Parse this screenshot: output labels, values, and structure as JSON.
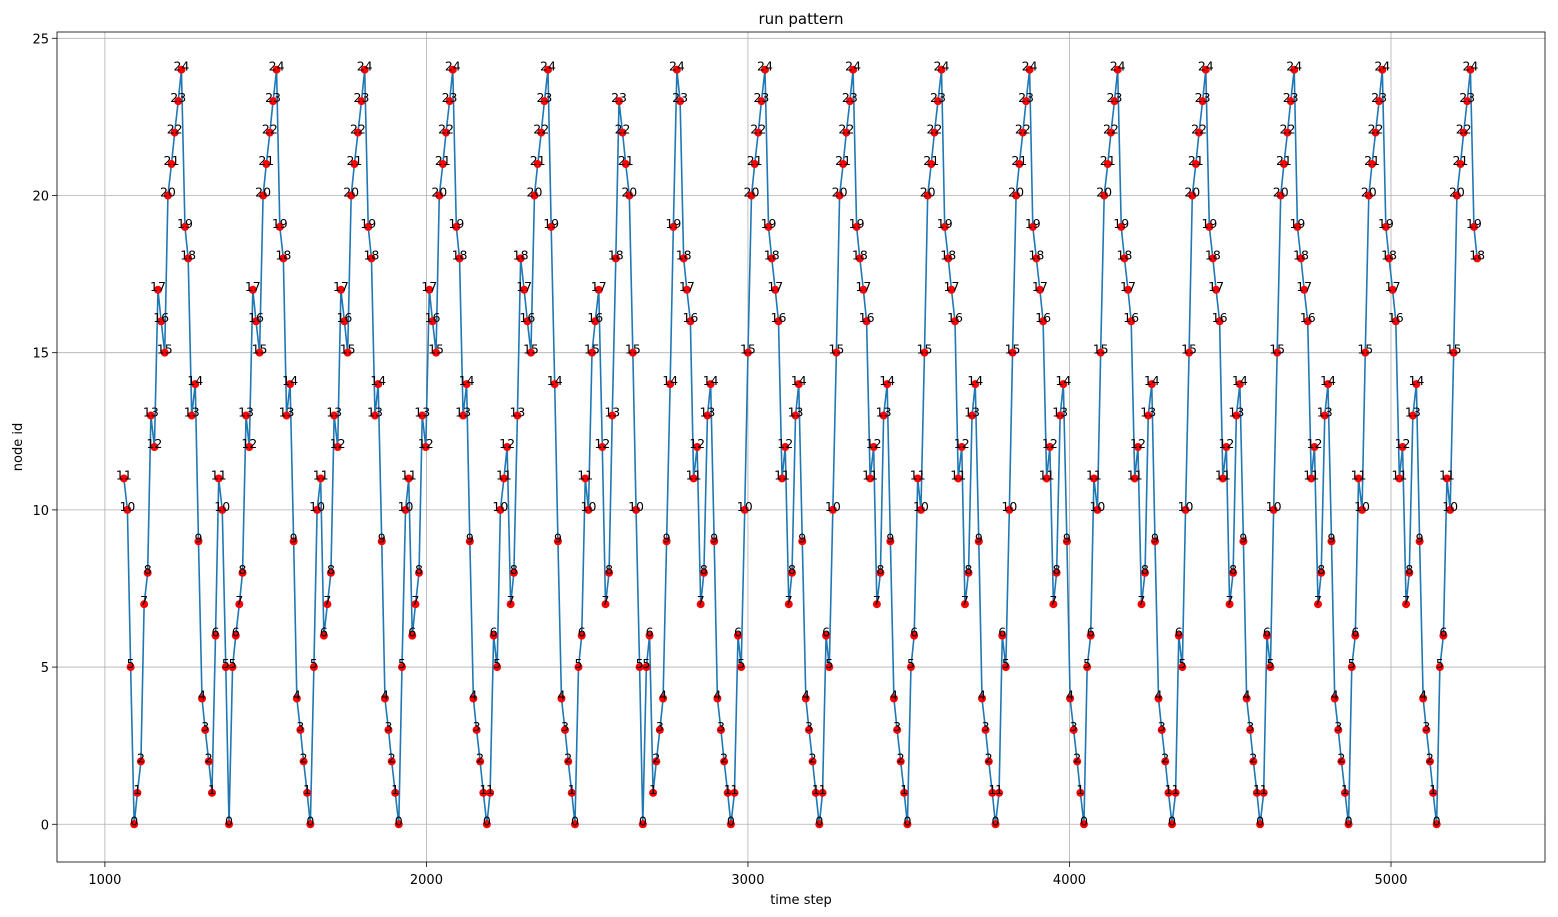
{
  "chart_data": {
    "type": "line",
    "title": "run pattern",
    "x_label": "time step",
    "y_label": "node id",
    "xlim": [
      851,
      5479
    ],
    "ylim": [
      -1.2,
      25.2
    ],
    "xticks": [
      1000,
      2000,
      3000,
      4000,
      5000
    ],
    "yticks": [
      0,
      5,
      10,
      15,
      20,
      25
    ],
    "grid": true,
    "line_color": "#1f77b4",
    "marker_color": "#ff0000",
    "x": [
      1059,
      1070,
      1080,
      1091,
      1101,
      1112,
      1122,
      1133,
      1143,
      1154,
      1165,
      1175,
      1186,
      1196,
      1207,
      1217,
      1228,
      1238,
      1249,
      1259,
      1270,
      1281,
      1291,
      1302,
      1312,
      1323,
      1333,
      1344,
      1354,
      1365,
      1376,
      1386,
      1397,
      1407,
      1418,
      1428,
      1439,
      1449,
      1460,
      1470,
      1481,
      1492,
      1502,
      1513,
      1523,
      1534,
      1544,
      1555,
      1565,
      1576,
      1587,
      1597,
      1608,
      1618,
      1629,
      1639,
      1650,
      1660,
      1671,
      1681,
      1692,
      1703,
      1713,
      1724,
      1734,
      1745,
      1755,
      1766,
      1776,
      1787,
      1798,
      1808,
      1819,
      1829,
      1840,
      1850,
      1861,
      1871,
      1882,
      1892,
      1903,
      1914,
      1924,
      1935,
      1945,
      1956,
      1966,
      1977,
      1987,
      1998,
      2009,
      2019,
      2030,
      2040,
      2051,
      2061,
      2072,
      2082,
      2093,
      2103,
      2114,
      2125,
      2135,
      2146,
      2156,
      2167,
      2177,
      2188,
      2198,
      2209,
      2220,
      2230,
      2241,
      2251,
      2262,
      2272,
      2283,
      2293,
      2304,
      2314,
      2325,
      2336,
      2346,
      2357,
      2367,
      2378,
      2388,
      2399,
      2409,
      2420,
      2431,
      2441,
      2452,
      2462,
      2473,
      2483,
      2494,
      2504,
      2515,
      2525,
      2536,
      2547,
      2557,
      2568,
      2578,
      2589,
      2599,
      2610,
      2620,
      2631,
      2642,
      2652,
      2663,
      2673,
      2684,
      2694,
      2705,
      2715,
      2726,
      2736,
      2747,
      2758,
      2768,
      2779,
      2789,
      2800,
      2810,
      2821,
      2831,
      2842,
      2853,
      2863,
      2874,
      2884,
      2895,
      2905,
      2916,
      2926,
      2937,
      2947,
      2958,
      2969,
      2979,
      2990,
      3000,
      3011,
      3021,
      3032,
      3042,
      3053,
      3064,
      3074,
      3085,
      3095,
      3106,
      3116,
      3127,
      3137,
      3148,
      3158,
      3169,
      3180,
      3190,
      3201,
      3211,
      3222,
      3232,
      3243,
      3253,
      3264,
      3275,
      3285,
      3296,
      3306,
      3317,
      3327,
      3338,
      3348,
      3359,
      3369,
      3380,
      3391,
      3401,
      3412,
      3422,
      3433,
      3443,
      3454,
      3464,
      3475,
      3486,
      3496,
      3507,
      3517,
      3528,
      3538,
      3549,
      3559,
      3570,
      3580,
      3591,
      3602,
      3612,
      3623,
      3633,
      3644,
      3654,
      3665,
      3675,
      3686,
      3697,
      3707,
      3718,
      3728,
      3739,
      3749,
      3760,
      3770,
      3781,
      3791,
      3802,
      3813,
      3823,
      3834,
      3844,
      3855,
      3865,
      3876,
      3886,
      3897,
      3908,
      3918,
      3929,
      3939,
      3950,
      3960,
      3971,
      3981,
      3992,
      4002,
      4013,
      4024,
      4034,
      4045,
      4055,
      4066,
      4076,
      4087,
      4097,
      4108,
      4119,
      4129,
      4140,
      4150,
      4161,
      4171,
      4182,
      4192,
      4203,
      4213,
      4224,
      4235,
      4245,
      4256,
      4266,
      4277,
      4287,
      4298,
      4308,
      4319,
      4330,
      4340,
      4351,
      4361,
      4372,
      4382,
      4393,
      4403,
      4414,
      4424,
      4435,
      4446,
      4456,
      4467,
      4477,
      4488,
      4498,
      4509,
      4519,
      4530,
      4541,
      4551,
      4562,
      4572,
      4583,
      4593,
      4604,
      4614,
      4625,
      4635,
      4646,
      4657,
      4667,
      4678,
      4688,
      4699,
      4709,
      4720,
      4730,
      4741,
      4752,
      4762,
      4773,
      4783,
      4794,
      4804,
      4815,
      4825,
      4836,
      4846,
      4857,
      4868,
      4878,
      4889,
      4899,
      4910,
      4920,
      4931,
      4941,
      4952,
      4963,
      4973,
      4984,
      4994,
      5005,
      5015,
      5026,
      5036,
      5047,
      5057,
      5068,
      5079,
      5089,
      5100,
      5110,
      5121,
      5131,
      5142,
      5152,
      5163,
      5174,
      5184,
      5195,
      5205,
      5216,
      5226,
      5237,
      5247,
      5258,
      5268
    ],
    "values": [
      11,
      10,
      5,
      0,
      1,
      2,
      7,
      8,
      13,
      12,
      17,
      16,
      15,
      20,
      21,
      22,
      23,
      24,
      19,
      18,
      13,
      14,
      9,
      4,
      3,
      2,
      1,
      6,
      11,
      10,
      5,
      0,
      5,
      6,
      7,
      8,
      13,
      12,
      17,
      16,
      15,
      20,
      21,
      22,
      23,
      24,
      19,
      18,
      13,
      14,
      9,
      4,
      3,
      2,
      1,
      0,
      5,
      10,
      11,
      6,
      7,
      8,
      13,
      12,
      17,
      16,
      15,
      20,
      21,
      22,
      23,
      24,
      19,
      18,
      13,
      14,
      9,
      4,
      3,
      2,
      1,
      0,
      5,
      10,
      11,
      6,
      7,
      8,
      13,
      12,
      17,
      16,
      15,
      20,
      21,
      22,
      23,
      24,
      19,
      18,
      13,
      14,
      9,
      4,
      3,
      2,
      1,
      0,
      1,
      6,
      5,
      10,
      11,
      12,
      7,
      8,
      13,
      18,
      17,
      16,
      15,
      20,
      21,
      22,
      23,
      24,
      19,
      14,
      9,
      4,
      3,
      2,
      1,
      0,
      5,
      6,
      11,
      10,
      15,
      16,
      17,
      12,
      7,
      8,
      13,
      18,
      23,
      22,
      21,
      20,
      15,
      10,
      5,
      0,
      5,
      6,
      1,
      2,
      3,
      4,
      9,
      14,
      19,
      24,
      23,
      18,
      17,
      16,
      11,
      12,
      7,
      8,
      13,
      14,
      9,
      4,
      3,
      2,
      1,
      0,
      1,
      6,
      5,
      10,
      15,
      20,
      21,
      22,
      23,
      24,
      19,
      18,
      17,
      16,
      11,
      12,
      7,
      8,
      13,
      14,
      9,
      4,
      3,
      2,
      1,
      0,
      1,
      6,
      5,
      10,
      15,
      20,
      21,
      22,
      23,
      24,
      19,
      18,
      17,
      16,
      11,
      12,
      7,
      8,
      13,
      14,
      9,
      4,
      3,
      2,
      1,
      0,
      5,
      6,
      11,
      10,
      15,
      20,
      21,
      22,
      23,
      24,
      19,
      18,
      17,
      16,
      11,
      12,
      7,
      8,
      13,
      14,
      9,
      4,
      3,
      2,
      1,
      0,
      1,
      6,
      5,
      10,
      15,
      20,
      21,
      22,
      23,
      24,
      19,
      18,
      17,
      16,
      11,
      12,
      7,
      8,
      13,
      14,
      9,
      4,
      3,
      2,
      1,
      0,
      5,
      6,
      11,
      10,
      15,
      20,
      21,
      22,
      23,
      24,
      19,
      18,
      17,
      16,
      11,
      12,
      7,
      8,
      13,
      14,
      9,
      4,
      3,
      2,
      1,
      0,
      1,
      6,
      5,
      10,
      15,
      20,
      21,
      22,
      23,
      24,
      19,
      18,
      17,
      16,
      11,
      12,
      7,
      8,
      13,
      14,
      9,
      4,
      3,
      2,
      1,
      0,
      1,
      6,
      5,
      10,
      15,
      20,
      21,
      22,
      23,
      24,
      19,
      18,
      17,
      16,
      11,
      12,
      7,
      8,
      13,
      14,
      9,
      4,
      3,
      2,
      1,
      0,
      5,
      6,
      11,
      10,
      15,
      20,
      21,
      22,
      23,
      24,
      19,
      18,
      17,
      16,
      11,
      12,
      7,
      8,
      13,
      14,
      9,
      4,
      3,
      2,
      1,
      0,
      5,
      6,
      11,
      10,
      15,
      20,
      21,
      22,
      23,
      24,
      19,
      18
    ]
  }
}
